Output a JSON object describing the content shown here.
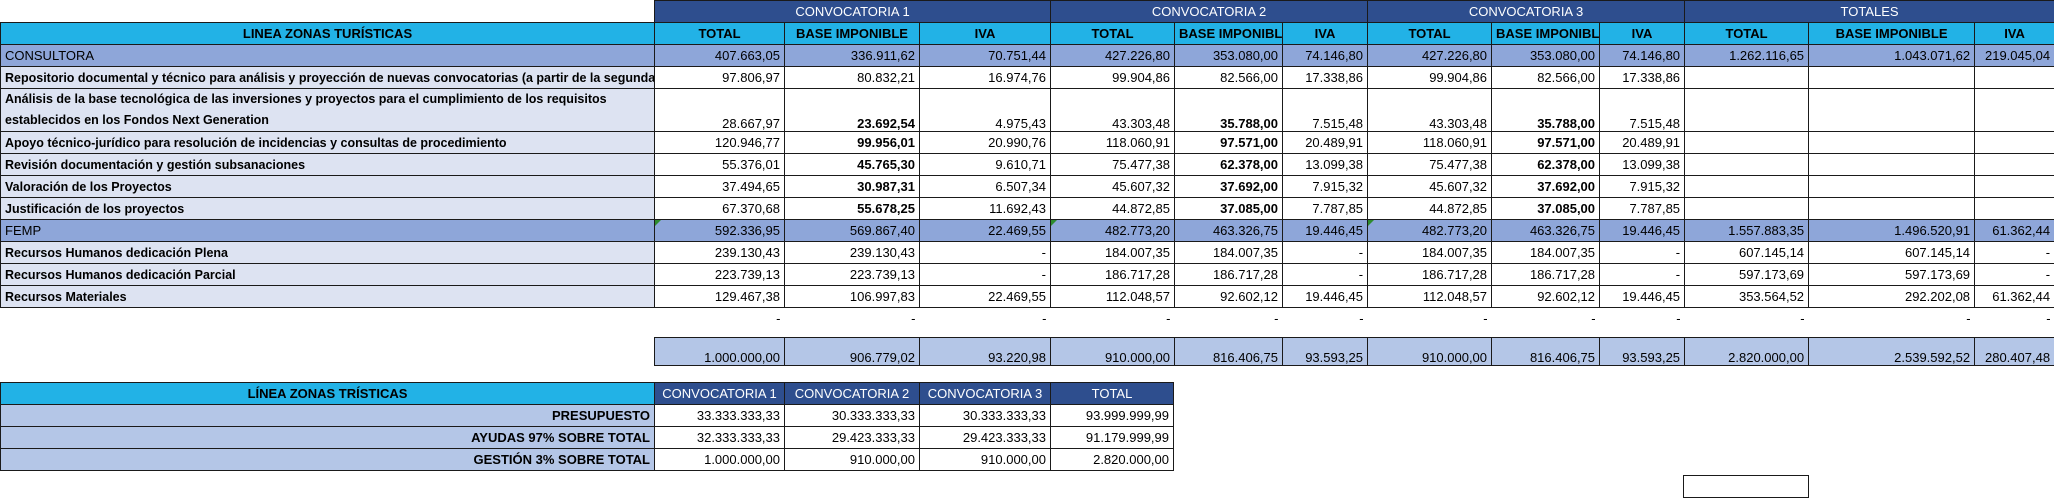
{
  "headers": {
    "groups": [
      "CONVOCATORIA 1",
      "CONVOCATORIA 2",
      "CONVOCATORIA 3",
      "TOTALES"
    ],
    "line_label": "LINEA ZONAS TURÍSTICAS",
    "cols": [
      "TOTAL",
      "BASE IMPONIBLE",
      "IVA"
    ]
  },
  "consultora": {
    "label": "CONSULTORA",
    "values": [
      "407.663,05",
      "336.911,62",
      "70.751,44",
      "427.226,80",
      "353.080,00",
      "74.146,80",
      "427.226,80",
      "353.080,00",
      "74.146,80",
      "1.262.116,65",
      "1.043.071,62",
      "219.045,04"
    ],
    "rows": [
      {
        "label": "Repositorio documental y técnico para análisis y proyección de nuevas convocatorias (a partir de la segunda)",
        "values": [
          "97.806,97",
          "80.832,21",
          "16.974,76",
          "99.904,86",
          "82.566,00",
          "17.338,86",
          "99.904,86",
          "82.566,00",
          "17.338,86",
          "",
          "",
          ""
        ]
      },
      {
        "label": "Análisis de la base tecnológica de las inversiones y proyectos para el cumplimiento de los requisitos establecidos en los Fondos Next Generation",
        "values": [
          "28.667,97",
          "23.692,54",
          "4.975,43",
          "43.303,48",
          "35.788,00",
          "7.515,48",
          "43.303,48",
          "35.788,00",
          "7.515,48",
          "",
          "",
          ""
        ]
      },
      {
        "label": "Apoyo técnico-jurídico para resolución de incidencias y consultas de procedimiento",
        "values": [
          "120.946,77",
          "99.956,01",
          "20.990,76",
          "118.060,91",
          "97.571,00",
          "20.489,91",
          "118.060,91",
          "97.571,00",
          "20.489,91",
          "",
          "",
          ""
        ]
      },
      {
        "label": "Revisión documentación y gestión subsanaciones",
        "values": [
          "55.376,01",
          "45.765,30",
          "9.610,71",
          "75.477,38",
          "62.378,00",
          "13.099,38",
          "75.477,38",
          "62.378,00",
          "13.099,38",
          "",
          "",
          ""
        ]
      },
      {
        "label": "Valoración de los Proyectos",
        "values": [
          "37.494,65",
          "30.987,31",
          "6.507,34",
          "45.607,32",
          "37.692,00",
          "7.915,32",
          "45.607,32",
          "37.692,00",
          "7.915,32",
          "",
          "",
          ""
        ]
      },
      {
        "label": "Justificación de los proyectos",
        "values": [
          "67.370,68",
          "55.678,25",
          "11.692,43",
          "44.872,85",
          "37.085,00",
          "7.787,85",
          "44.872,85",
          "37.085,00",
          "7.787,85",
          "",
          "",
          ""
        ]
      }
    ]
  },
  "femp": {
    "label": "FEMP",
    "values": [
      "592.336,95",
      "569.867,40",
      "22.469,55",
      "482.773,20",
      "463.326,75",
      "19.446,45",
      "482.773,20",
      "463.326,75",
      "19.446,45",
      "1.557.883,35",
      "1.496.520,91",
      "61.362,44"
    ],
    "rows": [
      {
        "label": "Recursos Humanos dedicación Plena",
        "values": [
          "239.130,43",
          "239.130,43",
          "-",
          "184.007,35",
          "184.007,35",
          "-",
          "184.007,35",
          "184.007,35",
          "-",
          "607.145,14",
          "607.145,14",
          "-"
        ]
      },
      {
        "label": "Recursos Humanos dedicación Parcial",
        "values": [
          "223.739,13",
          "223.739,13",
          "-",
          "186.717,28",
          "186.717,28",
          "-",
          "186.717,28",
          "186.717,28",
          "-",
          "597.173,69",
          "597.173,69",
          "-"
        ]
      },
      {
        "label": "Recursos Materiales",
        "values": [
          "129.467,38",
          "106.997,83",
          "22.469,55",
          "112.048,57",
          "92.602,12",
          "19.446,45",
          "112.048,57",
          "92.602,12",
          "19.446,45",
          "353.564,52",
          "292.202,08",
          "61.362,44"
        ]
      }
    ]
  },
  "dash_row": [
    "-",
    "-",
    "-",
    "-",
    "-",
    "-",
    "-",
    "-",
    "-",
    "-",
    "-",
    "-"
  ],
  "totals": [
    "1.000.000,00",
    "906.779,02",
    "93.220,98",
    "910.000,00",
    "816.406,75",
    "93.593,25",
    "910.000,00",
    "816.406,75",
    "93.593,25",
    "2.820.000,00",
    "2.539.592,52",
    "280.407,48"
  ],
  "summary": {
    "title": "LÍNEA ZONAS TRÍSTICAS",
    "headers": [
      "CONVOCATORIA 1",
      "CONVOCATORIA 2",
      "CONVOCATORIA 3",
      "TOTAL"
    ],
    "rows": [
      {
        "label": "PRESUPUESTO",
        "values": [
          "33.333.333,33",
          "30.333.333,33",
          "30.333.333,33",
          "93.999.999,99"
        ]
      },
      {
        "label": "AYUDAS 97% SOBRE TOTAL",
        "values": [
          "32.333.333,33",
          "29.423.333,33",
          "29.423.333,33",
          "91.179.999,99"
        ]
      },
      {
        "label": "GESTIÓN 3% SOBRE TOTAL",
        "values": [
          "1.000.000,00",
          "910.000,00",
          "910.000,00",
          "2.820.000,00"
        ]
      }
    ]
  },
  "colors": {
    "group_header": "#2e4e8e",
    "sub_header": "#22b2e6",
    "section": "#8ea6d9",
    "label_bg": "#dde3f2",
    "total_bg": "#b4c6e7"
  }
}
